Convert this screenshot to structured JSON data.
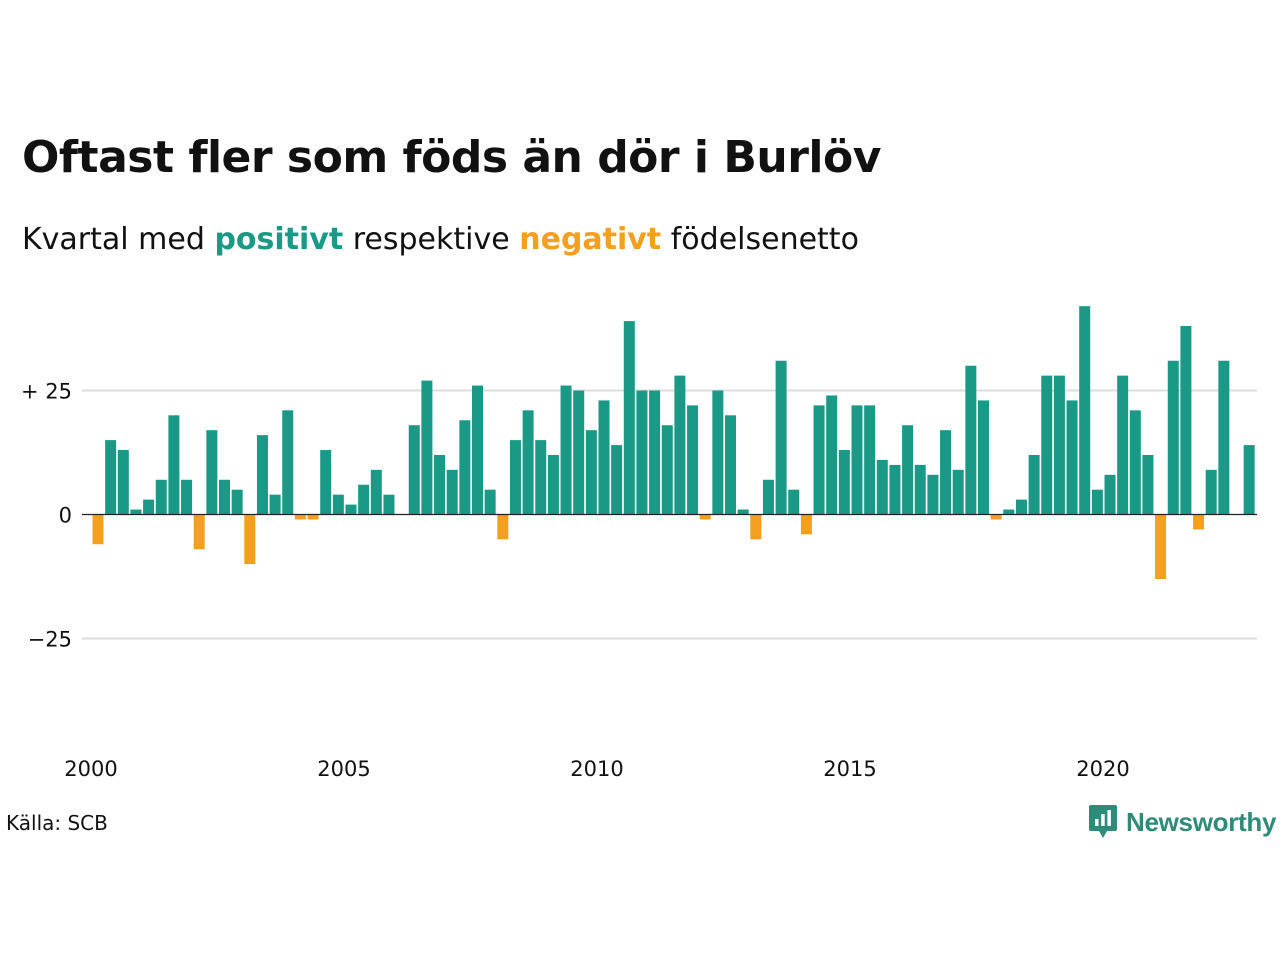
{
  "title": "Oftast fler som föds än dör i Burlöv",
  "subtitle": {
    "prefix": "Kvartal med",
    "positive_word": "positivt",
    "middle": "respektive",
    "negative_word": "negativt",
    "suffix": "födelsenetto"
  },
  "source": "Källa: SCB",
  "logo_text": "Newsworthy",
  "colors": {
    "positive": "#1a9a86",
    "negative": "#f59f1f",
    "grid": "#dddddd",
    "axis": "#222222",
    "logo": "#2e8b78"
  },
  "chart_data": {
    "type": "bar",
    "title": "Oftast fler som föds än dör i Burlöv",
    "subtitle": "Kvartal med positivt respektive negativt födelsenetto",
    "x_unit": "quarter",
    "start": "2000 Q1",
    "x_ticks": [
      "2000",
      "2005",
      "2010",
      "2015",
      "2020"
    ],
    "y_ticks": [
      {
        "value": 25,
        "label": "+ 25"
      },
      {
        "value": 0,
        "label": "0"
      },
      {
        "value": -25,
        "label": "−25"
      }
    ],
    "ylim": [
      -47,
      43
    ],
    "grid": true,
    "values": [
      -6,
      15,
      13,
      1,
      3,
      7,
      20,
      7,
      -7,
      17,
      7,
      5,
      -10,
      16,
      4,
      21,
      -1,
      -1,
      13,
      4,
      2,
      6,
      9,
      4,
      0,
      18,
      27,
      12,
      9,
      19,
      26,
      5,
      -5,
      15,
      21,
      15,
      12,
      26,
      25,
      17,
      23,
      14,
      39,
      25,
      25,
      18,
      28,
      22,
      -1,
      25,
      20,
      1,
      -5,
      7,
      31,
      5,
      -4,
      22,
      24,
      13,
      22,
      22,
      11,
      10,
      18,
      10,
      8,
      17,
      9,
      30,
      23,
      -1,
      1,
      3,
      12,
      28,
      28,
      23,
      42,
      5,
      8,
      28,
      21,
      12,
      -13,
      31,
      38,
      -3,
      9,
      31,
      0,
      14
    ]
  }
}
